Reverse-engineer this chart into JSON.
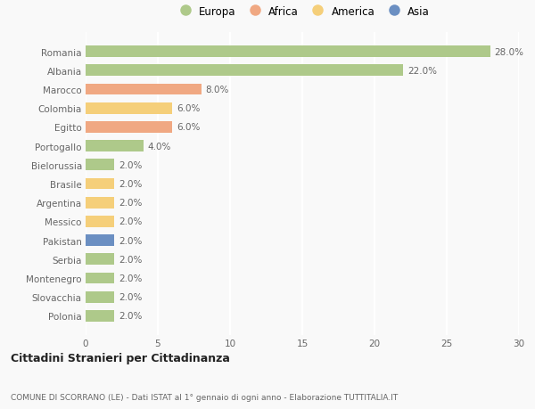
{
  "categories": [
    "Romania",
    "Albania",
    "Marocco",
    "Colombia",
    "Egitto",
    "Portogallo",
    "Bielorussia",
    "Brasile",
    "Argentina",
    "Messico",
    "Pakistan",
    "Serbia",
    "Montenegro",
    "Slovacchia",
    "Polonia"
  ],
  "values": [
    28.0,
    22.0,
    8.0,
    6.0,
    6.0,
    4.0,
    2.0,
    2.0,
    2.0,
    2.0,
    2.0,
    2.0,
    2.0,
    2.0,
    2.0
  ],
  "colors": [
    "#aec98a",
    "#aec98a",
    "#f0a882",
    "#f5cf7a",
    "#f0a882",
    "#aec98a",
    "#aec98a",
    "#f5cf7a",
    "#f5cf7a",
    "#f5cf7a",
    "#6b8fc2",
    "#aec98a",
    "#aec98a",
    "#aec98a",
    "#aec98a"
  ],
  "legend_labels": [
    "Europa",
    "Africa",
    "America",
    "Asia"
  ],
  "legend_colors": [
    "#aec98a",
    "#f0a882",
    "#f5cf7a",
    "#6b8fc2"
  ],
  "title": "Cittadini Stranieri per Cittadinanza",
  "subtitle": "COMUNE DI SCORRANO (LE) - Dati ISTAT al 1° gennaio di ogni anno - Elaborazione TUTTITALIA.IT",
  "xlim": [
    0,
    30
  ],
  "xticks": [
    0,
    5,
    10,
    15,
    20,
    25,
    30
  ],
  "background_color": "#f9f9f9",
  "grid_color": "#ffffff",
  "label_fontsize": 7.5,
  "tick_fontsize": 7.5,
  "bar_height": 0.6
}
